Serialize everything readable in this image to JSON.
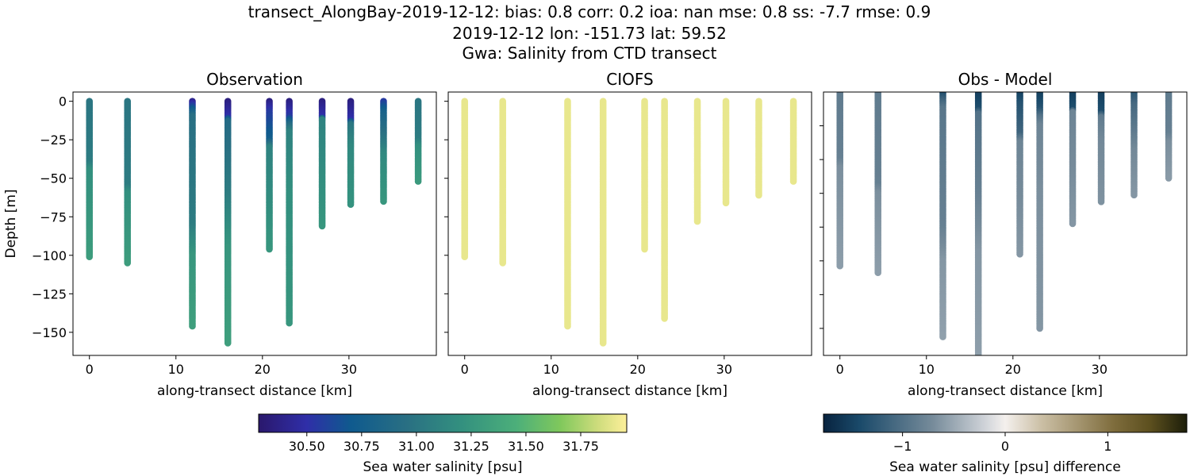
{
  "title_lines": [
    "transect_AlongBay-2019-12-12: bias: 0.8  corr: 0.2  ioa: nan  mse: 0.8  ss: -7.7  rmse: 0.9",
    "2019-12-12 lon: -151.73 lat: 59.52",
    "Gwa: Salinity from CTD transect"
  ],
  "chart_data": [
    {
      "type": "scatter",
      "title": "Observation",
      "xlabel": "along-transect distance [km]",
      "ylabel": "Depth [m]",
      "xlim": [
        -1.9,
        40.1
      ],
      "ylim": [
        -165,
        6
      ],
      "xticks": [
        0,
        10,
        20,
        30
      ],
      "yticks": [
        0,
        -25,
        -50,
        -75,
        -100,
        -125,
        -150
      ],
      "ytick_labels_shown": true,
      "colormap": "haline",
      "casts": [
        {
          "x": 0.0,
          "bottom": -101,
          "profile": [
            [
              0,
              31.0
            ],
            [
              40,
              31.05
            ],
            [
              45,
              31.2
            ],
            [
              101,
              31.3
            ]
          ]
        },
        {
          "x": 4.4,
          "bottom": -105,
          "profile": [
            [
              0,
              31.0
            ],
            [
              55,
              31.05
            ],
            [
              60,
              31.2
            ],
            [
              105,
              31.3
            ]
          ]
        },
        {
          "x": 11.9,
          "bottom": -146,
          "profile": [
            [
              0,
              30.4
            ],
            [
              5,
              30.7
            ],
            [
              10,
              30.95
            ],
            [
              80,
              31.05
            ],
            [
              100,
              31.25
            ],
            [
              146,
              31.32
            ]
          ]
        },
        {
          "x": 16.0,
          "bottom": -157,
          "profile": [
            [
              0,
              30.35
            ],
            [
              10,
              30.5
            ],
            [
              13,
              30.9
            ],
            [
              60,
              31.05
            ],
            [
              95,
              31.25
            ],
            [
              157,
              31.32
            ]
          ]
        },
        {
          "x": 20.8,
          "bottom": -96,
          "profile": [
            [
              0,
              30.35
            ],
            [
              7,
              30.55
            ],
            [
              25,
              30.75
            ],
            [
              30,
              31.1
            ],
            [
              96,
              31.25
            ]
          ]
        },
        {
          "x": 23.1,
          "bottom": -144,
          "profile": [
            [
              0,
              30.35
            ],
            [
              10,
              30.55
            ],
            [
              15,
              30.9
            ],
            [
              20,
              31.1
            ],
            [
              60,
              31.2
            ],
            [
              144,
              31.25
            ]
          ]
        },
        {
          "x": 26.9,
          "bottom": -81,
          "profile": [
            [
              0,
              30.35
            ],
            [
              10,
              30.5
            ],
            [
              12,
              31.1
            ],
            [
              81,
              31.25
            ]
          ]
        },
        {
          "x": 30.2,
          "bottom": -67,
          "profile": [
            [
              0,
              30.35
            ],
            [
              12,
              30.5
            ],
            [
              15,
              31.0
            ],
            [
              30,
              31.15
            ],
            [
              67,
              31.22
            ]
          ]
        },
        {
          "x": 34.0,
          "bottom": -65,
          "profile": [
            [
              0,
              30.55
            ],
            [
              8,
              30.8
            ],
            [
              25,
              31.0
            ],
            [
              35,
              31.15
            ],
            [
              65,
              31.25
            ]
          ]
        },
        {
          "x": 38.0,
          "bottom": -52,
          "profile": [
            [
              0,
              31.0
            ],
            [
              25,
              31.05
            ],
            [
              30,
              31.2
            ],
            [
              52,
              31.28
            ]
          ]
        }
      ]
    },
    {
      "type": "scatter",
      "title": "CIOFS",
      "xlabel": "along-transect distance [km]",
      "xlim": [
        -1.9,
        40.1
      ],
      "ylim": [
        -165,
        6
      ],
      "xticks": [
        0,
        10,
        20,
        30
      ],
      "yticks": [
        0,
        -25,
        -50,
        -75,
        -100,
        -125,
        -150
      ],
      "ytick_labels_shown": false,
      "colormap": "haline",
      "casts": [
        {
          "x": 0.0,
          "bottom": -101,
          "profile": [
            [
              0,
              31.9
            ],
            [
              101,
              31.9
            ]
          ]
        },
        {
          "x": 4.4,
          "bottom": -105,
          "profile": [
            [
              0,
              31.9
            ],
            [
              105,
              31.9
            ]
          ]
        },
        {
          "x": 11.9,
          "bottom": -146,
          "profile": [
            [
              0,
              31.9
            ],
            [
              146,
              31.9
            ]
          ]
        },
        {
          "x": 16.0,
          "bottom": -157,
          "profile": [
            [
              0,
              31.9
            ],
            [
              157,
              31.9
            ]
          ]
        },
        {
          "x": 20.8,
          "bottom": -96,
          "profile": [
            [
              0,
              31.9
            ],
            [
              96,
              31.9
            ]
          ]
        },
        {
          "x": 23.1,
          "bottom": -141,
          "profile": [
            [
              0,
              31.9
            ],
            [
              141,
              31.9
            ]
          ]
        },
        {
          "x": 26.9,
          "bottom": -78,
          "profile": [
            [
              0,
              31.9
            ],
            [
              78,
              31.9
            ]
          ]
        },
        {
          "x": 30.2,
          "bottom": -66,
          "profile": [
            [
              0,
              31.9
            ],
            [
              66,
              31.9
            ]
          ]
        },
        {
          "x": 34.0,
          "bottom": -61,
          "profile": [
            [
              0,
              31.9
            ],
            [
              61,
              31.9
            ]
          ]
        },
        {
          "x": 38.0,
          "bottom": -52,
          "profile": [
            [
              0,
              31.9
            ],
            [
              52,
              31.9
            ]
          ]
        }
      ]
    },
    {
      "type": "scatter",
      "title": "Obs - Model",
      "xlabel": "along-transect distance [km]",
      "xlim": [
        -1.9,
        40.1
      ],
      "ylim": [
        -156,
        0
      ],
      "xticks": [
        0,
        10,
        20,
        30
      ],
      "yticks": [
        -20,
        -40,
        -60,
        -80,
        -100,
        -120,
        -140
      ],
      "ytick_labels_shown": false,
      "colormap": "diff",
      "casts": [
        {
          "x": 0.0,
          "bottom": -103,
          "profile": [
            [
              0,
              -0.88
            ],
            [
              40,
              -0.83
            ],
            [
              45,
              -0.68
            ],
            [
              103,
              -0.58
            ]
          ]
        },
        {
          "x": 4.4,
          "bottom": -107,
          "profile": [
            [
              0,
              -0.88
            ],
            [
              55,
              -0.83
            ],
            [
              60,
              -0.68
            ],
            [
              107,
              -0.58
            ]
          ]
        },
        {
          "x": 11.9,
          "bottom": -145,
          "profile": [
            [
              0,
              -1.45
            ],
            [
              5,
              -1.15
            ],
            [
              10,
              -0.93
            ],
            [
              80,
              -0.83
            ],
            [
              100,
              -0.63
            ],
            [
              145,
              -0.56
            ]
          ]
        },
        {
          "x": 16.0,
          "bottom": -175,
          "profile": [
            [
              0,
              -1.53
            ],
            [
              10,
              -1.38
            ],
            [
              13,
              -0.98
            ],
            [
              60,
              -0.83
            ],
            [
              95,
              -0.63
            ],
            [
              175,
              -0.56
            ]
          ]
        },
        {
          "x": 20.8,
          "bottom": -96,
          "profile": [
            [
              0,
              -1.53
            ],
            [
              7,
              -1.33
            ],
            [
              25,
              -1.13
            ],
            [
              30,
              -0.78
            ],
            [
              96,
              -0.63
            ]
          ]
        },
        {
          "x": 23.1,
          "bottom": -140,
          "profile": [
            [
              0,
              -1.53
            ],
            [
              10,
              -1.33
            ],
            [
              15,
              -0.98
            ],
            [
              20,
              -0.78
            ],
            [
              60,
              -0.68
            ],
            [
              140,
              -0.63
            ]
          ]
        },
        {
          "x": 26.9,
          "bottom": -78,
          "profile": [
            [
              0,
              -1.53
            ],
            [
              10,
              -1.38
            ],
            [
              12,
              -0.78
            ],
            [
              78,
              -0.63
            ]
          ]
        },
        {
          "x": 30.2,
          "bottom": -65,
          "profile": [
            [
              0,
              -1.53
            ],
            [
              12,
              -1.38
            ],
            [
              15,
              -0.88
            ],
            [
              30,
              -0.73
            ],
            [
              65,
              -0.66
            ]
          ]
        },
        {
          "x": 34.0,
          "bottom": -61,
          "profile": [
            [
              0,
              -1.33
            ],
            [
              8,
              -1.08
            ],
            [
              25,
              -0.88
            ],
            [
              35,
              -0.73
            ],
            [
              61,
              -0.63
            ]
          ]
        },
        {
          "x": 38.0,
          "bottom": -51,
          "profile": [
            [
              0,
              -0.88
            ],
            [
              25,
              -0.83
            ],
            [
              30,
              -0.68
            ],
            [
              51,
              -0.6
            ]
          ]
        }
      ]
    }
  ],
  "colorbars": [
    {
      "label": "Sea water salinity [psu]",
      "colormap": "haline",
      "range": [
        30.28,
        31.96
      ],
      "ticks": [
        30.5,
        30.75,
        31.0,
        31.25,
        31.5,
        31.75
      ],
      "tick_labels": [
        "30.50",
        "30.75",
        "31.00",
        "31.25",
        "31.50",
        "31.75"
      ]
    },
    {
      "label": "Sea water salinity [psu] difference",
      "colormap": "diff",
      "range": [
        -1.77,
        1.77
      ],
      "ticks": [
        -1,
        0,
        1
      ],
      "tick_labels": [
        "−1",
        "0",
        "1"
      ]
    }
  ],
  "colormaps": {
    "haline": [
      [
        0,
        "#2a186c"
      ],
      [
        0.13,
        "#2f2ea8"
      ],
      [
        0.25,
        "#0f5a8e"
      ],
      [
        0.4,
        "#296f83"
      ],
      [
        0.55,
        "#33907f"
      ],
      [
        0.7,
        "#4caf7a"
      ],
      [
        0.82,
        "#80c85c"
      ],
      [
        0.92,
        "#cddc7c"
      ],
      [
        1,
        "#fdef9a"
      ]
    ],
    "diff": [
      [
        0,
        "#08233f"
      ],
      [
        0.1,
        "#1a4a6a"
      ],
      [
        0.3,
        "#768b9a"
      ],
      [
        0.45,
        "#d3d6db"
      ],
      [
        0.5,
        "#f4f0ed"
      ],
      [
        0.6,
        "#cbbfa5"
      ],
      [
        0.8,
        "#7e6c3c"
      ],
      [
        0.9,
        "#5c4f1e"
      ],
      [
        1,
        "#1c1e0a"
      ]
    ]
  }
}
